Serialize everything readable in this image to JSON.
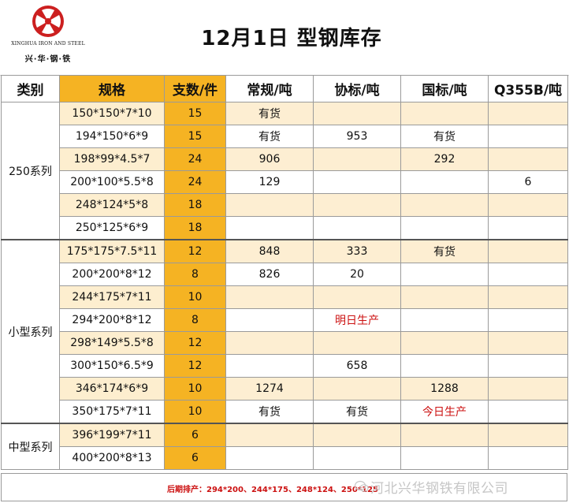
{
  "logo": {
    "english": "XINGHUA IRON AND STEEL",
    "chinese": "兴·华·钢·铁"
  },
  "title": "12月1日 型钢库存",
  "columns": [
    "类别",
    "规格",
    "支数/件",
    "常规/吨",
    "协标/吨",
    "国标/吨",
    "Q355B/吨"
  ],
  "groups": [
    {
      "category": "250系列",
      "rows": [
        {
          "spec": "150*150*7*10",
          "qty": "15",
          "regular": "有货",
          "assoc": "",
          "national": "",
          "q355b": ""
        },
        {
          "spec": "194*150*6*9",
          "qty": "15",
          "regular": "有货",
          "assoc": "953",
          "national": "有货",
          "q355b": ""
        },
        {
          "spec": "198*99*4.5*7",
          "qty": "24",
          "regular": "906",
          "assoc": "",
          "national": "292",
          "q355b": ""
        },
        {
          "spec": "200*100*5.5*8",
          "qty": "24",
          "regular": "129",
          "assoc": "",
          "national": "",
          "q355b": "6"
        },
        {
          "spec": "248*124*5*8",
          "qty": "18",
          "regular": "",
          "assoc": "",
          "national": "",
          "q355b": ""
        },
        {
          "spec": "250*125*6*9",
          "qty": "18",
          "regular": "",
          "assoc": "",
          "national": "",
          "q355b": ""
        }
      ]
    },
    {
      "category": "小型系列",
      "rows": [
        {
          "spec": "175*175*7.5*11",
          "qty": "12",
          "regular": "848",
          "assoc": "333",
          "national": "有货",
          "q355b": ""
        },
        {
          "spec": "200*200*8*12",
          "qty": "8",
          "regular": "826",
          "assoc": "20",
          "national": "",
          "q355b": ""
        },
        {
          "spec": "244*175*7*11",
          "qty": "10",
          "regular": "",
          "assoc": "",
          "national": "",
          "q355b": ""
        },
        {
          "spec": "294*200*8*12",
          "qty": "8",
          "regular": "",
          "assoc": "明日生产",
          "national": "",
          "q355b": ""
        },
        {
          "spec": "298*149*5.5*8",
          "qty": "12",
          "regular": "",
          "assoc": "",
          "national": "",
          "q355b": ""
        },
        {
          "spec": "300*150*6.5*9",
          "qty": "12",
          "regular": "",
          "assoc": "658",
          "national": "",
          "q355b": ""
        },
        {
          "spec": "346*174*6*9",
          "qty": "10",
          "regular": "1274",
          "assoc": "",
          "national": "1288",
          "q355b": ""
        },
        {
          "spec": "350*175*7*11",
          "qty": "10",
          "regular": "有货",
          "assoc": "有货",
          "national": "今日生产",
          "q355b": ""
        }
      ]
    },
    {
      "category": "中型系列",
      "rows": [
        {
          "spec": "396*199*7*11",
          "qty": "6",
          "regular": "",
          "assoc": "",
          "national": "",
          "q355b": ""
        },
        {
          "spec": "400*200*8*13",
          "qty": "6",
          "regular": "",
          "assoc": "",
          "national": "",
          "q355b": ""
        }
      ]
    }
  ],
  "footer": {
    "note": "后期排产：294*200、244*175、248*124、250*125"
  },
  "watermark": "河北兴华钢铁有限公司",
  "colors": {
    "accent": "#f5b323",
    "alt_row": "#fdeed2",
    "highlight_text": "#cc1111",
    "logo_red": "#cc1f1f"
  }
}
